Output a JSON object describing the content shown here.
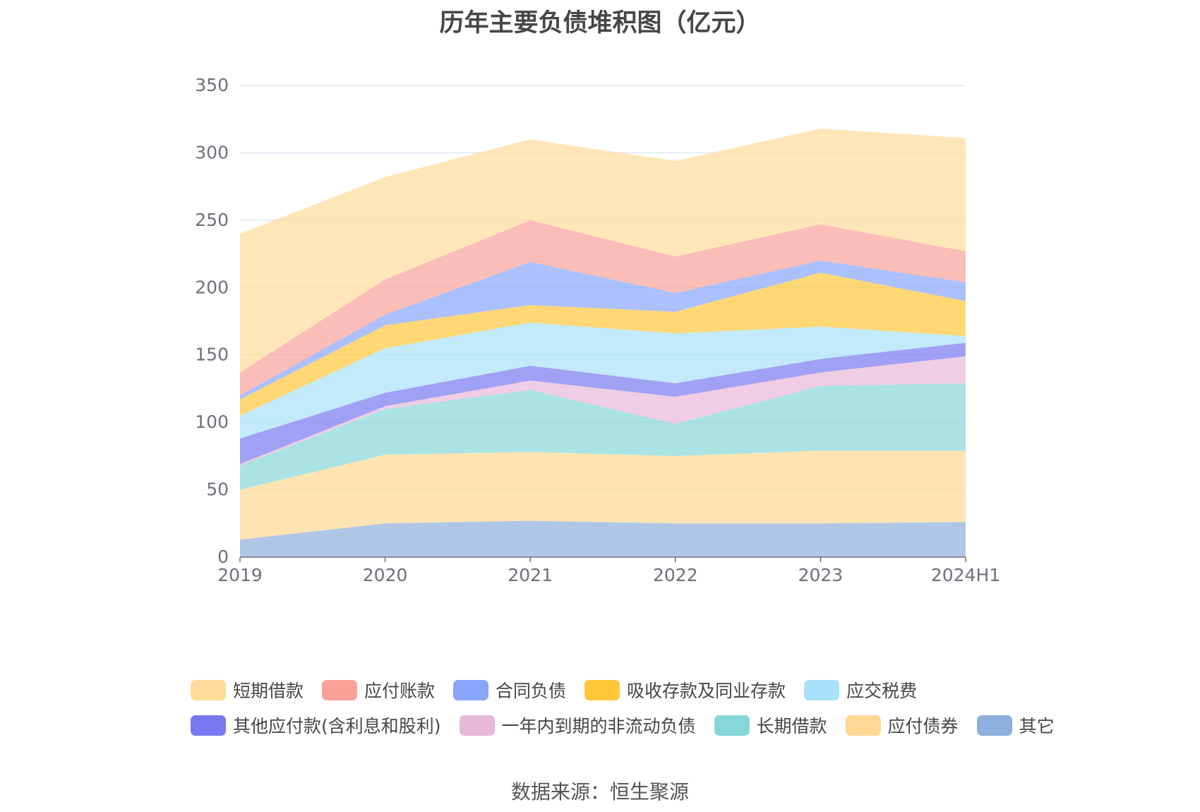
{
  "title": "历年主要负债堆积图（亿元）",
  "source": "数据来源：恒生聚源",
  "chart_data": {
    "type": "area",
    "stacked": true,
    "x": [
      "2019",
      "2020",
      "2021",
      "2022",
      "2023",
      "2024H1"
    ],
    "ylim": [
      0,
      350
    ],
    "yticks": [
      0,
      50,
      100,
      150,
      200,
      250,
      300,
      350
    ],
    "grid": true,
    "legend_position": "bottom",
    "series": [
      {
        "name": "其它",
        "color": "#8eaedb",
        "values": [
          13,
          25,
          27,
          25,
          25,
          26
        ]
      },
      {
        "name": "应付债券",
        "color": "#ffd893",
        "values": [
          37,
          51,
          51,
          50,
          54,
          53
        ]
      },
      {
        "name": "长期借款",
        "color": "#87d7d8",
        "values": [
          18,
          34,
          46,
          24,
          48,
          50
        ]
      },
      {
        "name": "一年内到期的非流动负债",
        "color": "#e8b8d9",
        "values": [
          1,
          2,
          7,
          20,
          10,
          20
        ]
      },
      {
        "name": "其他应付款(含利息和股利)",
        "color": "#7879f0",
        "values": [
          19,
          10,
          11,
          10,
          10,
          10
        ]
      },
      {
        "name": "应交税费",
        "color": "#a8e1fa",
        "values": [
          17,
          33,
          32,
          37,
          24,
          5
        ]
      },
      {
        "name": "吸收存款及同业存款",
        "color": "#ffc73a",
        "values": [
          12,
          17,
          13,
          16,
          40,
          26
        ]
      },
      {
        "name": "合同负债",
        "color": "#89a5fc",
        "values": [
          3,
          8,
          32,
          14,
          9,
          14
        ]
      },
      {
        "name": "应付账款",
        "color": "#f9a198",
        "values": [
          17,
          26,
          31,
          27,
          27,
          23
        ]
      },
      {
        "name": "短期借款",
        "color": "#ffdc9a",
        "values": [
          103,
          76,
          60,
          71,
          71,
          84
        ]
      }
    ]
  },
  "legend_rows": [
    [
      {
        "name": "短期借款",
        "color": "#ffdc9a"
      },
      {
        "name": "应付账款",
        "color": "#f9a198"
      },
      {
        "name": "合同负债",
        "color": "#89a5fc"
      },
      {
        "name": "吸收存款及同业存款",
        "color": "#ffc73a"
      },
      {
        "name": "应交税费",
        "color": "#a8e1fa"
      }
    ],
    [
      {
        "name": "其他应付款(含利息和股利)",
        "color": "#7879f0"
      },
      {
        "name": "一年内到期的非流动负债",
        "color": "#e8b8d9"
      },
      {
        "name": "长期借款",
        "color": "#87d7d8"
      },
      {
        "name": "应付债券",
        "color": "#ffd893"
      },
      {
        "name": "其它",
        "color": "#8eaedb"
      }
    ]
  ]
}
